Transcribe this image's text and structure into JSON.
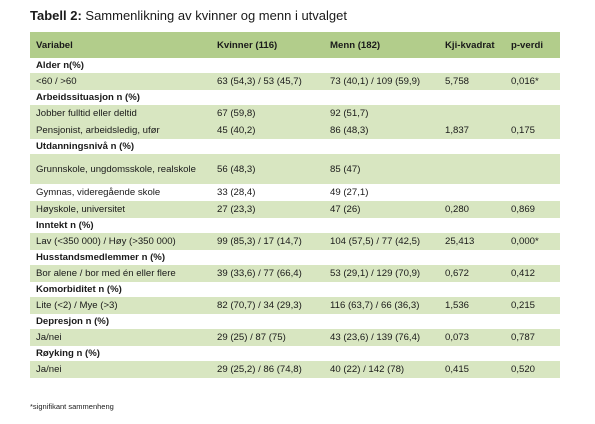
{
  "title": {
    "bold": "Tabell 2:",
    "rest": " Sammenlikning av kvinner og menn i utvalget"
  },
  "headers": [
    "Variabel",
    "Kvinner (116)",
    "Menn (182)",
    "Kji-kvadrat",
    "p-verdi"
  ],
  "rows": [
    {
      "type": "section",
      "cells": [
        "Alder n(%)",
        "",
        "",
        "",
        ""
      ]
    },
    {
      "type": "data",
      "cells": [
        "<60 / >60",
        "63 (54,3) / 53 (45,7)",
        "73 (40,1) / 109 (59,9)",
        "5,758",
        "0,016*"
      ]
    },
    {
      "type": "section",
      "cells": [
        "Arbeidssituasjon n (%)",
        "",
        "",
        "",
        ""
      ]
    },
    {
      "type": "data",
      "cells": [
        "Jobber fulltid eller deltid",
        "67 (59,8)",
        "92 (51,7)",
        "",
        ""
      ]
    },
    {
      "type": "data",
      "cells": [
        "Pensjonist, arbeidsledig, ufør",
        "45 (40,2)",
        "86 (48,3)",
        "1,837",
        "0,175"
      ]
    },
    {
      "type": "section",
      "cells": [
        "Utdanningsnivå n (%)",
        "",
        "",
        "",
        ""
      ]
    },
    {
      "type": "data-tall",
      "cells": [
        "Grunnskole, ungdomsskole, realskole",
        "56 (48,3)",
        "85 (47)",
        "",
        ""
      ]
    },
    {
      "type": "data-white",
      "cells": [
        "Gymnas, videregående skole",
        "33 (28,4)",
        "49 (27,1)",
        "",
        ""
      ]
    },
    {
      "type": "data",
      "cells": [
        "Høyskole, universitet",
        "27 (23,3)",
        "47 (26)",
        "0,280",
        "0,869"
      ]
    },
    {
      "type": "section",
      "cells": [
        "Inntekt n (%)",
        "",
        "",
        "",
        ""
      ]
    },
    {
      "type": "data",
      "cells": [
        "Lav (<350 000) / Høy (>350 000)",
        "99 (85,3) / 17 (14,7)",
        "104 (57,5) / 77 (42,5)",
        "25,413",
        "0,000*"
      ]
    },
    {
      "type": "section",
      "cells": [
        "Husstandsmedlemmer n (%)",
        "",
        "",
        "",
        ""
      ]
    },
    {
      "type": "data",
      "cells": [
        "Bor alene / bor med én eller flere",
        "39 (33,6) / 77 (66,4)",
        "53 (29,1) / 129 (70,9)",
        "0,672",
        "0,412"
      ]
    },
    {
      "type": "section",
      "cells": [
        "Komorbiditet n (%)",
        "",
        "",
        "",
        ""
      ]
    },
    {
      "type": "data",
      "cells": [
        "Lite (<2) / Mye (>3)",
        "82 (70,7) / 34 (29,3)",
        "116 (63,7) / 66 (36,3)",
        "1,536",
        "0,215"
      ]
    },
    {
      "type": "section",
      "cells": [
        "Depresjon n (%)",
        "",
        "",
        "",
        ""
      ]
    },
    {
      "type": "data",
      "cells": [
        "Ja/nei",
        "29 (25) / 87 (75)",
        "43 (23,6) / 139 (76,4)",
        "0,073",
        "0,787"
      ]
    },
    {
      "type": "section",
      "cells": [
        "Røyking n (%)",
        "",
        "",
        "",
        ""
      ]
    },
    {
      "type": "data",
      "cells": [
        "Ja/nei",
        "29 (25,2) / 86 (74,8)",
        "40 (22) / 142 (78)",
        "0,415",
        "0,520"
      ]
    }
  ],
  "footnote": "*signifikant sammenheng",
  "colors": {
    "header_bg": "#b2cd8b",
    "row_bg": "#d8e6c1"
  }
}
